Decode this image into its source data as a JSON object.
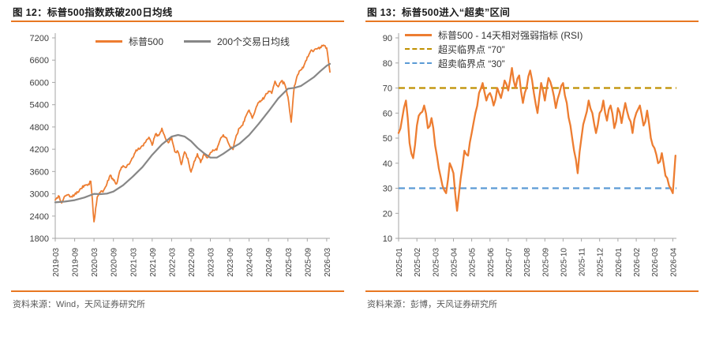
{
  "page": {
    "background": "#ffffff",
    "axis_color": "#A6A6A6",
    "tick_label_color": "#3d3d3d"
  },
  "figures": [
    {
      "title": "图 12：标普500指数跌破200日均线",
      "source": "资料来源：Wind，天风证券研究所",
      "accent_color": "#E87722",
      "chart_data": {
        "type": "line",
        "title": "标普500指数跌破200日均线",
        "legend_position": "top-center",
        "grid": false,
        "ylim": [
          1800,
          7200
        ],
        "y_ticks": [
          1800,
          2400,
          3000,
          3600,
          4200,
          4800,
          5400,
          6000,
          6600,
          7200
        ],
        "xlim_months": [
          0,
          85
        ],
        "x_tick_months": [
          0,
          6,
          12,
          18,
          24,
          30,
          36,
          42,
          48,
          54,
          60,
          66,
          72,
          78,
          84
        ],
        "x_tick_labels": [
          "2019-03",
          "2019-09",
          "2020-03",
          "2020-09",
          "2021-03",
          "2021-09",
          "2022-03",
          "2022-09",
          "2023-03",
          "2023-09",
          "2024-03",
          "2024-09",
          "2025-03",
          "2025-09",
          "2026-03"
        ],
        "series": [
          {
            "name": "标普500",
            "color": "#ED7D31",
            "style": "solid",
            "x_start_month": 0,
            "x_step_months": 1,
            "values": [
              2834,
              2946,
              2752,
              2942,
              2980,
              2926,
              2977,
              3038,
              3141,
              3231,
              3226,
              3337,
              2246,
              2912,
              3044,
              3100,
              3271,
              3500,
              3363,
              3270,
              3622,
              3756,
              3714,
              3811,
              3973,
              4181,
              4204,
              4297,
              4395,
              4523,
              4308,
              4605,
              4567,
              4766,
              4516,
              4374,
              4530,
              4132,
              4132,
              3785,
              4130,
              3955,
              3586,
              3872,
              4080,
              3840,
              4077,
              3970,
              4109,
              4169,
              4180,
              4450,
              4589,
              4508,
              4288,
              4194,
              4568,
              4770,
              4846,
              5096,
              5254,
              5036,
              5278,
              5460,
              5522,
              5648,
              5762,
              5705,
              6032,
              5882,
              6041,
              5955,
              5612,
              4930,
              5912,
              6205,
              6339,
              6460,
              6688,
              6840,
              6850,
              6900,
              6950,
              7005,
              6930,
              6280
            ]
          },
          {
            "name": "200个交易日均线",
            "color": "#878787",
            "style": "solid",
            "points": [
              [
                0,
                2770
              ],
              [
                3,
                2790
              ],
              [
                6,
                2830
              ],
              [
                9,
                2900
              ],
              [
                12,
                3000
              ],
              [
                14,
                2990
              ],
              [
                16,
                3005
              ],
              [
                18,
                3060
              ],
              [
                21,
                3230
              ],
              [
                24,
                3465
              ],
              [
                27,
                3720
              ],
              [
                30,
                4050
              ],
              [
                33,
                4330
              ],
              [
                36,
                4540
              ],
              [
                38,
                4585
              ],
              [
                40,
                4545
              ],
              [
                42,
                4420
              ],
              [
                44,
                4240
              ],
              [
                46,
                4095
              ],
              [
                48,
                3975
              ],
              [
                50,
                3975
              ],
              [
                52,
                4080
              ],
              [
                54,
                4200
              ],
              [
                57,
                4350
              ],
              [
                60,
                4580
              ],
              [
                63,
                4890
              ],
              [
                66,
                5220
              ],
              [
                69,
                5570
              ],
              [
                72,
                5830
              ],
              [
                74,
                5855
              ],
              [
                76,
                5905
              ],
              [
                78,
                6020
              ],
              [
                80,
                6140
              ],
              [
                82,
                6300
              ],
              [
                84,
                6450
              ],
              [
                85,
                6500
              ]
            ]
          }
        ]
      }
    },
    {
      "title": "图 13：标普500进入“超卖”区间",
      "source": "资料来源：彭博，天风证券研究所",
      "accent_color": "#E87722",
      "chart_data": {
        "type": "line",
        "title": "标普500进入“超卖”区间",
        "legend_position": "top-left",
        "grid": false,
        "ylim": [
          10,
          90
        ],
        "y_ticks": [
          10,
          20,
          30,
          40,
          50,
          60,
          70,
          80,
          90
        ],
        "xlim_months": [
          0,
          15.2
        ],
        "x_tick_months": [
          0,
          1,
          2,
          3,
          4,
          5,
          6,
          7,
          8,
          9,
          10,
          11,
          12,
          13,
          14,
          15
        ],
        "x_tick_labels": [
          "2025-01",
          "2025-02",
          "2025-03",
          "2025-04",
          "2025-05",
          "2025-06",
          "2025-07",
          "2025-08",
          "2025-09",
          "2025-10",
          "2025-11",
          "2025-12",
          "2026-01",
          "2026-02",
          "2026-03",
          "2026-04"
        ],
        "series": [
          {
            "name": "标普500 - 14天相对强弱指标 (RSI)",
            "color": "#ED7D31",
            "style": "solid",
            "points": [
              [
                0,
                52
              ],
              [
                0.2,
                58
              ],
              [
                0.4,
                65
              ],
              [
                0.6,
                48
              ],
              [
                0.8,
                42
              ],
              [
                1,
                55
              ],
              [
                1.2,
                60
              ],
              [
                1.4,
                63
              ],
              [
                1.6,
                54
              ],
              [
                1.8,
                58
              ],
              [
                2,
                47
              ],
              [
                2.2,
                38
              ],
              [
                2.4,
                31
              ],
              [
                2.6,
                28
              ],
              [
                2.8,
                40
              ],
              [
                3,
                36
              ],
              [
                3.2,
                21
              ],
              [
                3.4,
                34
              ],
              [
                3.6,
                45
              ],
              [
                3.8,
                43
              ],
              [
                4,
                52
              ],
              [
                4.2,
                60
              ],
              [
                4.4,
                68
              ],
              [
                4.6,
                72
              ],
              [
                4.8,
                65
              ],
              [
                5,
                68
              ],
              [
                5.2,
                63
              ],
              [
                5.4,
                70
              ],
              [
                5.6,
                66
              ],
              [
                5.8,
                73
              ],
              [
                6,
                69
              ],
              [
                6.2,
                78
              ],
              [
                6.4,
                70
              ],
              [
                6.6,
                75
              ],
              [
                6.8,
                64
              ],
              [
                7,
                70
              ],
              [
                7.2,
                77
              ],
              [
                7.4,
                68
              ],
              [
                7.6,
                60
              ],
              [
                7.8,
                72
              ],
              [
                8,
                65
              ],
              [
                8.2,
                74
              ],
              [
                8.4,
                70
              ],
              [
                8.6,
                62
              ],
              [
                8.8,
                68
              ],
              [
                9,
                72
              ],
              [
                9.2,
                64
              ],
              [
                9.4,
                55
              ],
              [
                9.6,
                45
              ],
              [
                9.8,
                36
              ],
              [
                10,
                50
              ],
              [
                10.2,
                58
              ],
              [
                10.4,
                65
              ],
              [
                10.6,
                60
              ],
              [
                10.8,
                52
              ],
              [
                11,
                60
              ],
              [
                11.2,
                65
              ],
              [
                11.4,
                57
              ],
              [
                11.6,
                63
              ],
              [
                11.8,
                54
              ],
              [
                12,
                62
              ],
              [
                12.2,
                56
              ],
              [
                12.4,
                64
              ],
              [
                12.6,
                58
              ],
              [
                12.8,
                52
              ],
              [
                13,
                60
              ],
              [
                13.2,
                63
              ],
              [
                13.4,
                55
              ],
              [
                13.6,
                61
              ],
              [
                13.8,
                50
              ],
              [
                14,
                46
              ],
              [
                14.2,
                40
              ],
              [
                14.4,
                44
              ],
              [
                14.6,
                35
              ],
              [
                14.8,
                31
              ],
              [
                15,
                28
              ],
              [
                15.15,
                43
              ]
            ]
          }
        ],
        "reference_lines": [
          {
            "label": "超买临界点 “70”",
            "value": 70,
            "color": "#BF9000",
            "style": "dashed"
          },
          {
            "label": "超卖临界点 “30”",
            "value": 30,
            "color": "#5B9BD5",
            "style": "dashed"
          }
        ]
      }
    }
  ]
}
